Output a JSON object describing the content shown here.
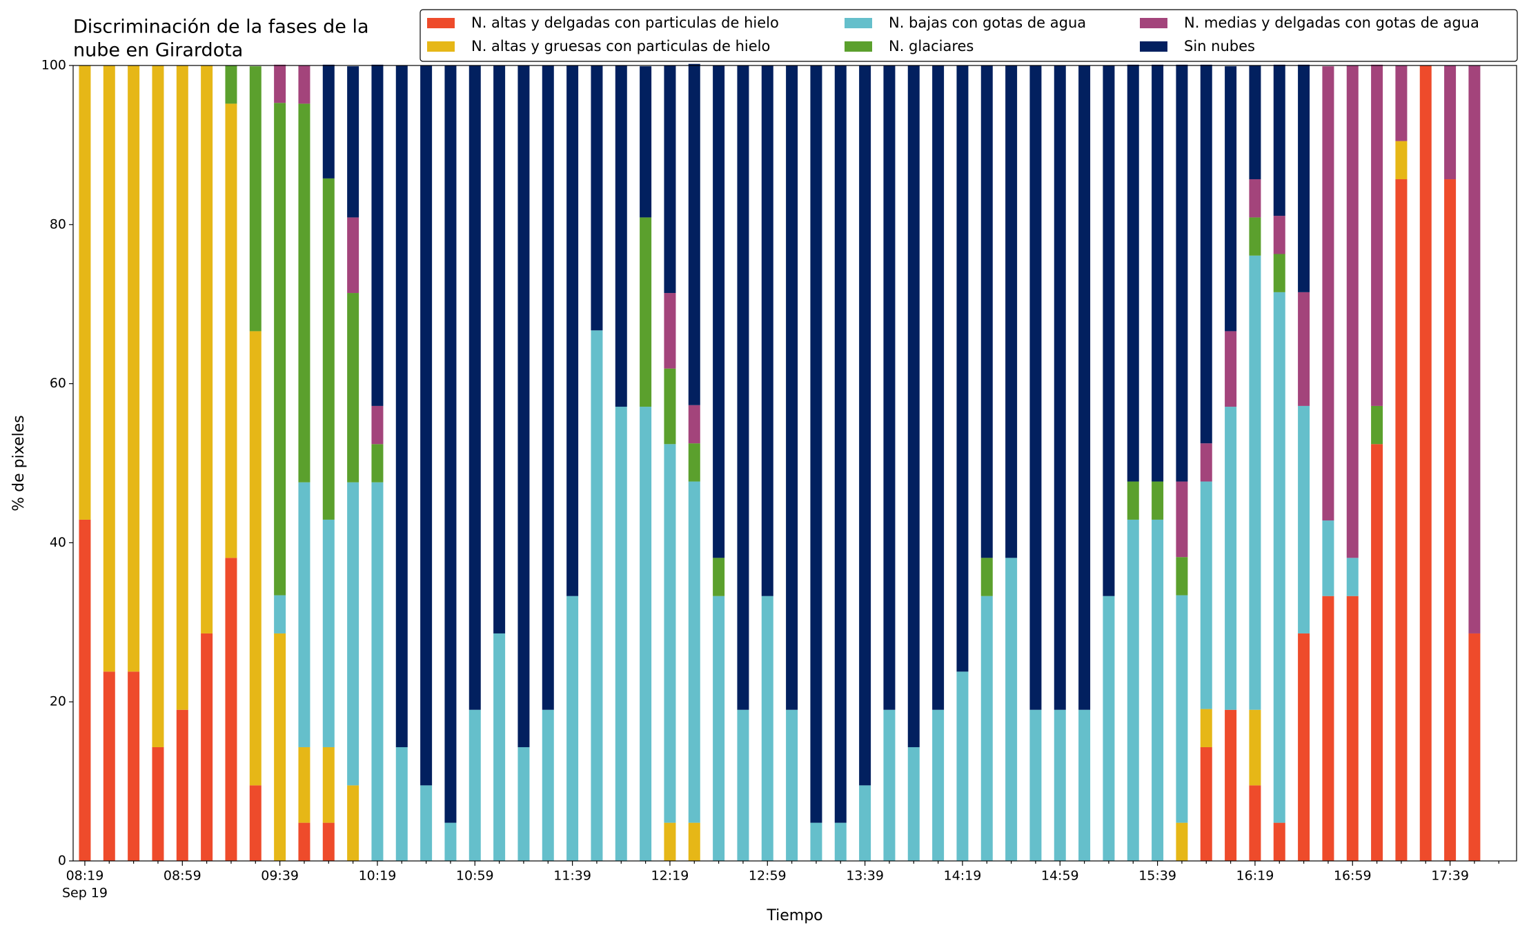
{
  "chart_data": {
    "type": "stacked_bar",
    "title": [
      "Discriminación de la fases de la",
      "nube en Girardota"
    ],
    "x_label": "Tiempo",
    "y_label": "% de pixeles",
    "x_date_label": "Sep 19",
    "categories": [
      "08:19",
      null,
      null,
      null,
      "08:59",
      null,
      null,
      null,
      "09:39",
      null,
      null,
      null,
      "10:19",
      null,
      null,
      null,
      "10:59",
      null,
      null,
      null,
      "11:39",
      null,
      null,
      null,
      "12:19",
      null,
      null,
      null,
      "12:59",
      null,
      null,
      null,
      "13:39",
      null,
      null,
      null,
      "14:19",
      null,
      null,
      null,
      "14:59",
      null,
      null,
      null,
      "15:39",
      null,
      null,
      null,
      "16:19",
      null,
      null,
      null,
      "16:59",
      null,
      null,
      null,
      "17:39",
      null
    ],
    "ylim": [
      0,
      100
    ],
    "yticks": [
      0,
      20,
      40,
      60,
      80,
      100
    ],
    "legend": "top-right",
    "series": [
      {
        "name": "N. altas y delgadas con particulas de hielo",
        "color": "#ee4b2b",
        "values": [
          42.9,
          23.8,
          23.8,
          14.3,
          19.0,
          28.6,
          38.1,
          9.5,
          0,
          4.8,
          4.8,
          0,
          0,
          0,
          0,
          0,
          0,
          0,
          0,
          0,
          0,
          0,
          0,
          0,
          0,
          0,
          0,
          0,
          0,
          0,
          0,
          0,
          0,
          0,
          0,
          0,
          0,
          0,
          0,
          0,
          0,
          0,
          0,
          0,
          0,
          0,
          14.3,
          19.0,
          9.5,
          4.8,
          28.6,
          33.3,
          33.3,
          52.4,
          85.7,
          100,
          85.7,
          28.6
        ]
      },
      {
        "name": "N. altas y gruesas con particulas de hielo",
        "color": "#e6b717",
        "values": [
          57.1,
          76.2,
          76.2,
          85.7,
          81.0,
          71.4,
          57.1,
          57.1,
          28.6,
          9.5,
          9.5,
          9.5,
          0,
          0,
          0,
          0,
          0,
          0,
          0,
          0,
          0,
          0,
          0,
          0,
          4.8,
          4.8,
          0,
          0,
          0,
          0,
          0,
          0,
          0,
          0,
          0,
          0,
          0,
          0,
          0,
          0,
          0,
          0,
          0,
          0,
          0,
          4.8,
          4.8,
          0,
          9.5,
          0,
          0,
          0,
          0,
          0,
          4.8,
          0,
          0,
          0
        ]
      },
      {
        "name": "N. bajas con gotas de agua",
        "color": "#65bfcb",
        "values": [
          0,
          0,
          0,
          0,
          0,
          0,
          0,
          0,
          4.8,
          33.3,
          28.6,
          38.1,
          47.6,
          14.3,
          9.5,
          4.8,
          19.0,
          28.6,
          14.3,
          19.0,
          33.3,
          66.7,
          57.1,
          57.1,
          47.6,
          42.9,
          33.3,
          19.0,
          33.3,
          19.0,
          4.8,
          4.8,
          9.5,
          19.0,
          14.3,
          19.0,
          23.8,
          33.3,
          38.1,
          19.0,
          19.0,
          19.0,
          33.3,
          42.9,
          42.9,
          28.6,
          28.6,
          38.1,
          57.1,
          66.7,
          28.6,
          9.5,
          4.8,
          0,
          0,
          0,
          0,
          0
        ]
      },
      {
        "name": "N. glaciares",
        "color": "#5ba02d",
        "values": [
          0,
          0,
          0,
          0,
          0,
          0,
          4.8,
          33.3,
          61.9,
          47.6,
          42.9,
          23.8,
          4.8,
          0,
          0,
          0,
          0,
          0,
          0,
          0,
          0,
          0,
          0,
          23.8,
          9.5,
          4.8,
          4.8,
          0,
          0,
          0,
          0,
          0,
          0,
          0,
          0,
          0,
          0,
          4.8,
          0,
          0,
          0,
          0,
          0,
          4.8,
          4.8,
          4.8,
          0,
          0,
          4.8,
          4.8,
          0,
          0,
          0,
          4.8,
          0,
          0,
          0,
          0
        ]
      },
      {
        "name": "N. medias y delgadas con gotas de agua",
        "color": "#a3447b",
        "values": [
          0,
          0,
          0,
          0,
          0,
          0,
          0,
          0,
          4.8,
          4.8,
          0,
          9.5,
          4.8,
          0,
          0,
          0,
          0,
          0,
          0,
          0,
          0,
          0,
          0,
          0,
          9.5,
          4.8,
          0,
          0,
          0,
          0,
          0,
          0,
          0,
          0,
          0,
          0,
          0,
          0,
          0,
          0,
          0,
          0,
          0,
          0,
          0,
          9.5,
          4.8,
          9.5,
          4.8,
          4.8,
          14.3,
          57.1,
          61.9,
          42.9,
          9.5,
          0,
          14.3,
          71.4
        ]
      },
      {
        "name": "Sin nubes",
        "color": "#02205f",
        "values": [
          0,
          0,
          0,
          0,
          0,
          0,
          0,
          0,
          0,
          0,
          14.3,
          19.0,
          42.9,
          85.7,
          90.5,
          95.2,
          81.0,
          71.4,
          85.7,
          81.0,
          66.7,
          33.3,
          42.9,
          19.0,
          28.6,
          42.9,
          61.9,
          81.0,
          66.7,
          81.0,
          95.2,
          95.2,
          90.5,
          81.0,
          85.7,
          81.0,
          76.2,
          61.9,
          61.9,
          81.0,
          81.0,
          81.0,
          66.7,
          52.4,
          52.4,
          52.4,
          47.6,
          33.3,
          14.3,
          19.0,
          28.6,
          0,
          0,
          0,
          0,
          0,
          0,
          0
        ]
      }
    ]
  }
}
